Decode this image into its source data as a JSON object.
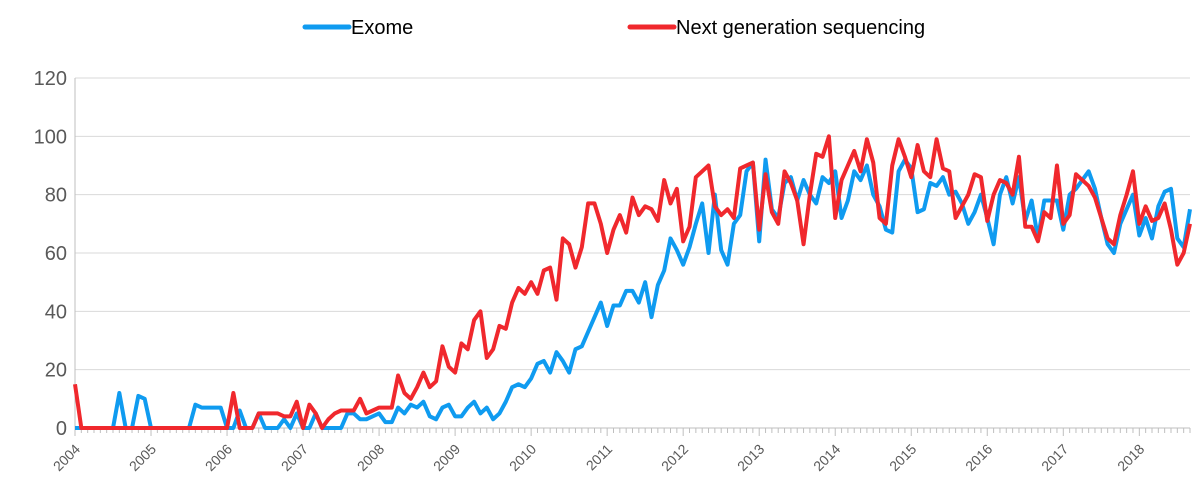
{
  "chart_data": {
    "type": "line",
    "categories": [
      "2004",
      null,
      null,
      null,
      null,
      null,
      null,
      null,
      null,
      null,
      null,
      null,
      "2005",
      null,
      null,
      null,
      null,
      null,
      null,
      null,
      null,
      null,
      null,
      null,
      "2006",
      null,
      null,
      null,
      null,
      null,
      null,
      null,
      null,
      null,
      null,
      null,
      "2007",
      null,
      null,
      null,
      null,
      null,
      null,
      null,
      null,
      null,
      null,
      null,
      "2008",
      null,
      null,
      null,
      null,
      null,
      null,
      null,
      null,
      null,
      null,
      null,
      "2009",
      null,
      null,
      null,
      null,
      null,
      null,
      null,
      null,
      null,
      null,
      null,
      "2010",
      null,
      null,
      null,
      null,
      null,
      null,
      null,
      null,
      null,
      null,
      null,
      "2011",
      null,
      null,
      null,
      null,
      null,
      null,
      null,
      null,
      null,
      null,
      null,
      "2012",
      null,
      null,
      null,
      null,
      null,
      null,
      null,
      null,
      null,
      null,
      null,
      "2013",
      null,
      null,
      null,
      null,
      null,
      null,
      null,
      null,
      null,
      null,
      null,
      "2014",
      null,
      null,
      null,
      null,
      null,
      null,
      null,
      null,
      null,
      null,
      null,
      "2015",
      null,
      null,
      null,
      null,
      null,
      null,
      null,
      null,
      null,
      null,
      null,
      "2016",
      null,
      null,
      null,
      null,
      null,
      null,
      null,
      null,
      null,
      null,
      null,
      "2017",
      null,
      null,
      null,
      null,
      null,
      null,
      null,
      null,
      null,
      null,
      null,
      "2018",
      null,
      null,
      null,
      null,
      null,
      null,
      null,
      null
    ],
    "series": [
      {
        "name": "Exome",
        "color": "#0f9bf0",
        "values": [
          0,
          0,
          0,
          0,
          0,
          0,
          0,
          12,
          0,
          0,
          11,
          10,
          0,
          0,
          0,
          0,
          0,
          0,
          0,
          8,
          7,
          7,
          7,
          7,
          0,
          0,
          6,
          0,
          0,
          5,
          0,
          0,
          0,
          3,
          0,
          5,
          0,
          0,
          5,
          0,
          0,
          0,
          0,
          5,
          5,
          3,
          3,
          4,
          5,
          2,
          2,
          7,
          5,
          8,
          7,
          9,
          4,
          3,
          7,
          8,
          4,
          4,
          7,
          9,
          5,
          7,
          3,
          5,
          9,
          14,
          15,
          14,
          17,
          22,
          23,
          19,
          26,
          23,
          19,
          27,
          28,
          33,
          38,
          43,
          35,
          42,
          42,
          47,
          47,
          43,
          50,
          38,
          49,
          54,
          65,
          61,
          56,
          62,
          70,
          77,
          60,
          80,
          61,
          56,
          70,
          73,
          88,
          91,
          64,
          92,
          75,
          72,
          84,
          86,
          78,
          85,
          80,
          77,
          86,
          84,
          88,
          72,
          78,
          88,
          85,
          90,
          80,
          76,
          68,
          67,
          88,
          92,
          89,
          74,
          75,
          84,
          83,
          86,
          80,
          81,
          77,
          70,
          74,
          80,
          72,
          63,
          80,
          86,
          77,
          86,
          71,
          78,
          65,
          78,
          78,
          78,
          68,
          80,
          82,
          85,
          88,
          82,
          72,
          63,
          60,
          70,
          75,
          80,
          66,
          72,
          65,
          76,
          81,
          82,
          65,
          62,
          75
        ]
      },
      {
        "name": "Next generation sequencing",
        "color": "#f0282d",
        "values": [
          15,
          0,
          0,
          0,
          0,
          0,
          0,
          0,
          0,
          0,
          0,
          0,
          0,
          0,
          0,
          0,
          0,
          0,
          0,
          0,
          0,
          0,
          0,
          0,
          0,
          12,
          0,
          0,
          0,
          5,
          5,
          5,
          5,
          4,
          4,
          9,
          0,
          8,
          5,
          0,
          3,
          5,
          6,
          6,
          6,
          10,
          5,
          6,
          7,
          7,
          7,
          18,
          12,
          10,
          14,
          19,
          14,
          16,
          28,
          21,
          19,
          29,
          27,
          37,
          40,
          24,
          27,
          35,
          34,
          43,
          48,
          46,
          50,
          46,
          54,
          55,
          44,
          65,
          63,
          55,
          62,
          77,
          77,
          70,
          60,
          68,
          73,
          67,
          79,
          73,
          76,
          75,
          71,
          85,
          77,
          82,
          64,
          69,
          86,
          88,
          90,
          76,
          73,
          75,
          72,
          89,
          90,
          91,
          68,
          87,
          74,
          70,
          88,
          84,
          78,
          63,
          80,
          94,
          93,
          100,
          72,
          85,
          90,
          95,
          88,
          99,
          91,
          72,
          70,
          90,
          99,
          93,
          86,
          97,
          88,
          86,
          99,
          89,
          88,
          72,
          76,
          80,
          87,
          86,
          71,
          80,
          85,
          84,
          80,
          93,
          69,
          69,
          64,
          74,
          72,
          90,
          70,
          73,
          87,
          85,
          83,
          79,
          72,
          65,
          63,
          73,
          80,
          88,
          70,
          76,
          71,
          72,
          77,
          68,
          56,
          60,
          70
        ]
      }
    ],
    "ylim": [
      0,
      120
    ],
    "yticks": [
      0,
      20,
      40,
      60,
      80,
      100,
      120
    ],
    "grid": true
  }
}
